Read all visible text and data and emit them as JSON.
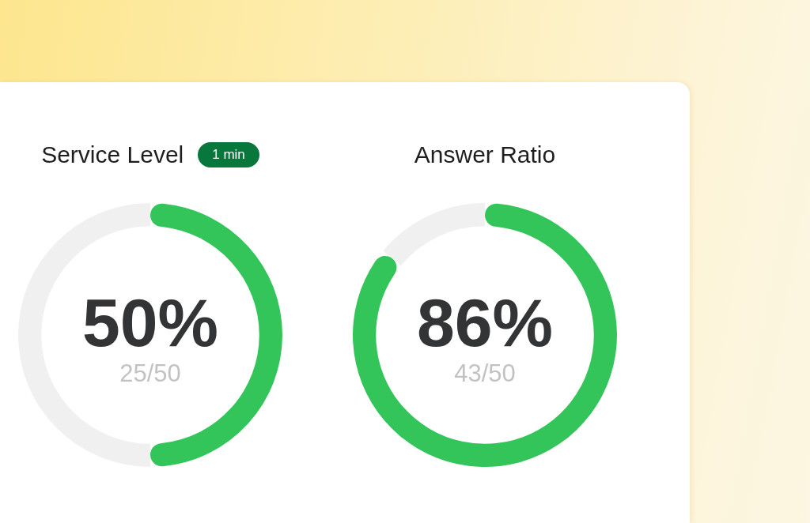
{
  "chart_data": [
    {
      "type": "donut",
      "title": "Service Level",
      "subtitle": "1 min",
      "categories": [
        null,
        null
      ],
      "values": [
        50,
        50
      ],
      "colors": [
        "#33c55a",
        "#f0f0f0"
      ],
      "annotations": [
        "50%",
        "25/50"
      ]
    },
    {
      "type": "donut",
      "title": "Answer Ratio",
      "categories": [
        null,
        null
      ],
      "values": [
        86,
        14
      ],
      "colors": [
        "#33c55a",
        "#f0f0f0"
      ],
      "annotations": [
        "86%",
        "43/50"
      ]
    }
  ]
}
